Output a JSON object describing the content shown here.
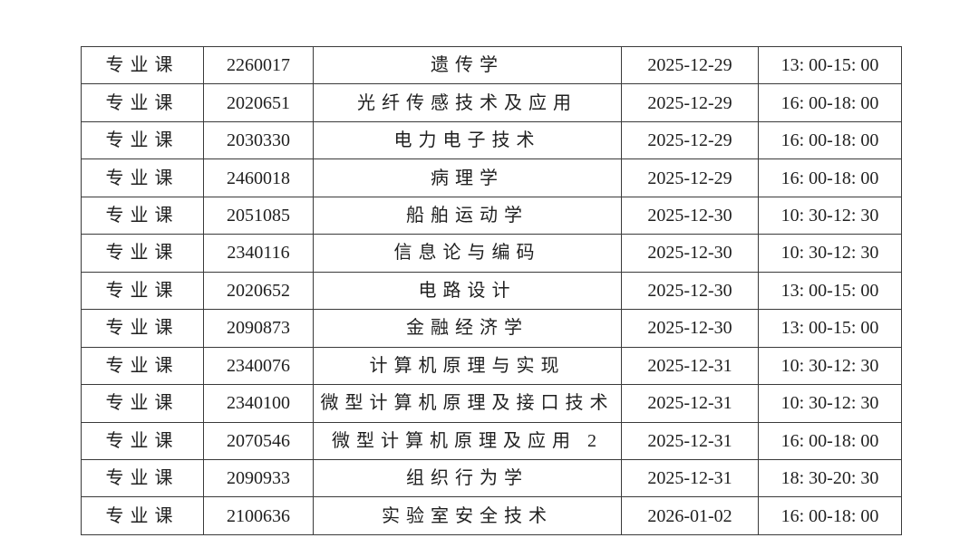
{
  "page": {
    "background_color": "#ffffff",
    "text_color": "#1f1f1f",
    "border_color": "#3a3a3a"
  },
  "table": {
    "column_names": [
      "cell-course-type",
      "cell-course-code",
      "cell-course-name",
      "cell-exam-date",
      "cell-exam-time"
    ],
    "rows": [
      [
        "专业课",
        "2260017",
        "遗传学",
        "2025-12-29",
        "13: 00-15: 00"
      ],
      [
        "专业课",
        "2020651",
        "光纤传感技术及应用",
        "2025-12-29",
        "16: 00-18: 00"
      ],
      [
        "专业课",
        "2030330",
        "电力电子技术",
        "2025-12-29",
        "16: 00-18: 00"
      ],
      [
        "专业课",
        "2460018",
        "病理学",
        "2025-12-29",
        "16: 00-18: 00"
      ],
      [
        "专业课",
        "2051085",
        "船舶运动学",
        "2025-12-30",
        "10: 30-12: 30"
      ],
      [
        "专业课",
        "2340116",
        "信息论与编码",
        "2025-12-30",
        "10: 30-12: 30"
      ],
      [
        "专业课",
        "2020652",
        "电路设计",
        "2025-12-30",
        "13: 00-15: 00"
      ],
      [
        "专业课",
        "2090873",
        "金融经济学",
        "2025-12-30",
        "13: 00-15: 00"
      ],
      [
        "专业课",
        "2340076",
        "计算机原理与实现",
        "2025-12-31",
        "10: 30-12: 30"
      ],
      [
        "专业课",
        "2340100",
        "微型计算机原理及接口技术",
        "2025-12-31",
        "10: 30-12: 30"
      ],
      [
        "专业课",
        "2070546",
        "微型计算机原理及应用 2",
        "2025-12-31",
        "16: 00-18: 00"
      ],
      [
        "专业课",
        "2090933",
        "组织行为学",
        "2025-12-31",
        "18: 30-20: 30"
      ],
      [
        "专业课",
        "2100636",
        "实验室安全技术",
        "2026-01-02",
        "16: 00-18: 00"
      ]
    ]
  }
}
